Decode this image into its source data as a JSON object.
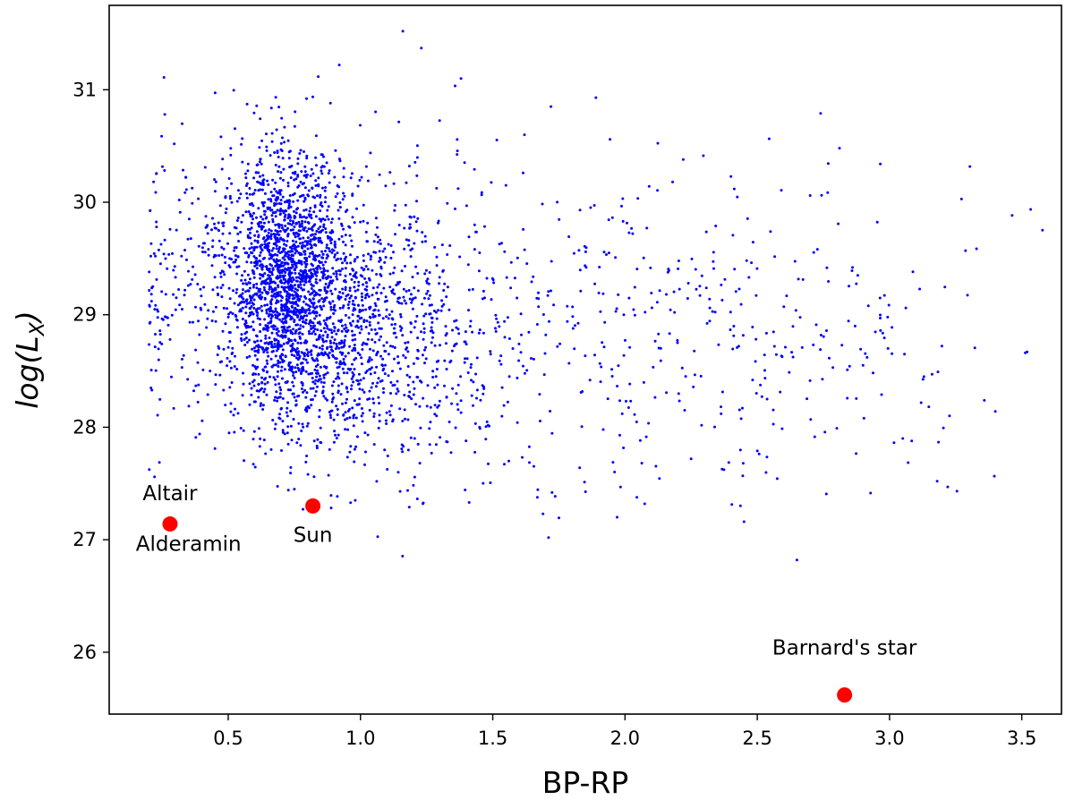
{
  "chart_data": {
    "type": "scatter",
    "xlabel": "BP-RP",
    "ylabel_parts": [
      "log(L",
      "X",
      ")"
    ],
    "xlim": [
      0.05,
      3.65
    ],
    "ylim": [
      25.45,
      31.75
    ],
    "xticks": [
      0.5,
      1.0,
      1.5,
      2.0,
      2.5,
      3.0,
      3.5
    ],
    "xtick_labels": [
      "0.5",
      "1.0",
      "1.5",
      "2.0",
      "2.5",
      "3.0",
      "3.5"
    ],
    "yticks": [
      26,
      27,
      28,
      29,
      30,
      31
    ],
    "ytick_labels": [
      "26",
      "27",
      "28",
      "29",
      "30",
      "31"
    ],
    "grid": false,
    "series": [
      {
        "marker": "small-dot",
        "color": "#0000ff",
        "approx_count": 3500,
        "clusters": [
          {
            "x_center": 0.72,
            "y_center": 29.3,
            "x_spread": 0.1,
            "y_spread": 0.55,
            "weight": 0.42
          },
          {
            "x_center": 0.95,
            "y_center": 28.9,
            "x_spread": 0.18,
            "y_spread": 0.55,
            "weight": 0.25
          },
          {
            "x_center": 0.5,
            "y_center": 29.3,
            "x_spread": 0.2,
            "y_spread": 0.65,
            "weight": 0.12
          },
          {
            "x_center": 1.25,
            "y_center": 28.9,
            "x_spread": 0.25,
            "y_spread": 0.8,
            "weight": 0.09
          },
          {
            "x_center": 2.2,
            "y_center": 28.8,
            "x_spread": 0.55,
            "y_spread": 0.7,
            "weight": 0.12
          }
        ],
        "points": [
          [
            1.16,
            31.52
          ],
          [
            1.23,
            31.37
          ],
          [
            0.92,
            31.22
          ],
          [
            1.89,
            30.93
          ],
          [
            1.72,
            30.85
          ],
          [
            0.26,
            30.78
          ],
          [
            1.38,
            31.1
          ],
          [
            2.7,
            30.06
          ],
          [
            3.52,
            28.67
          ],
          [
            3.4,
            28.14
          ],
          [
            3.22,
            27.47
          ],
          [
            3.18,
            27.52
          ],
          [
            2.65,
            26.82
          ],
          [
            2.45,
            27.16
          ],
          [
            1.97,
            27.2
          ],
          [
            1.69,
            27.23
          ],
          [
            3.13,
            28.45
          ],
          [
            3.05,
            27.9
          ],
          [
            2.92,
            29.08
          ],
          [
            0.28,
            28.78
          ],
          [
            0.21,
            29.12
          ],
          [
            0.45,
            27.81
          ],
          [
            0.75,
            27.45
          ],
          [
            0.98,
            27.35
          ],
          [
            1.15,
            27.43
          ],
          [
            2.22,
            30.38
          ],
          [
            2.18,
            30.18
          ],
          [
            1.62,
            30.6
          ],
          [
            1.55,
            30.15
          ],
          [
            2.55,
            29.74
          ],
          [
            2.86,
            29.42
          ],
          [
            2.88,
            29.35
          ],
          [
            2.82,
            28.73
          ],
          [
            2.9,
            28.55
          ],
          [
            2.97,
            28.29
          ]
        ]
      },
      {
        "marker": "large-dot",
        "color": "#ff0000",
        "points": [
          {
            "x": 0.28,
            "y": 27.14
          },
          {
            "x": 0.82,
            "y": 27.3
          },
          {
            "x": 2.83,
            "y": 25.62
          }
        ]
      }
    ],
    "annotations": [
      {
        "text": "Altair",
        "x": 0.28,
        "y": 27.35
      },
      {
        "text": "Alderamin",
        "x": 0.35,
        "y": 26.9
      },
      {
        "text": "Sun",
        "x": 0.82,
        "y": 26.98
      },
      {
        "text": "Barnard's star",
        "x": 2.83,
        "y": 25.98
      }
    ]
  }
}
